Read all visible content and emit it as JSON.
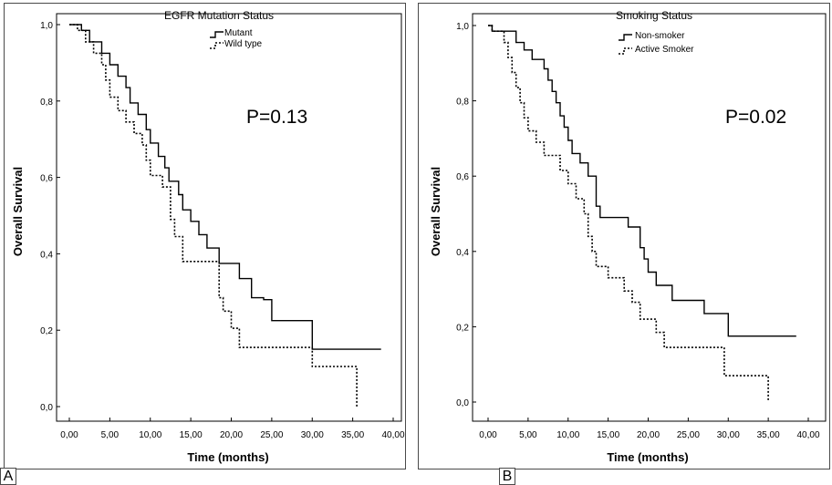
{
  "chart_data": [
    {
      "type": "line",
      "panel_label": "A",
      "xlabel": "Time (months)",
      "ylabel": "Overall Survival",
      "xlim": [
        0,
        40
      ],
      "ylim": [
        0,
        1
      ],
      "x_ticks": [
        "0,00",
        "5,00",
        "10,00",
        "15,00",
        "20,00",
        "25,00",
        "30,00",
        "35,00",
        "40,00"
      ],
      "y_ticks": [
        "0,0",
        "0,2",
        "0,4",
        "0,6",
        "0,8",
        "1,0"
      ],
      "legend_title": "EGFR Mutation Status",
      "annotation": "P=0.13",
      "grid": false,
      "series": [
        {
          "name": "Mutant",
          "style": "solid",
          "step": [
            [
              0,
              1
            ],
            [
              1.5,
              1
            ],
            [
              1.5,
              0.985
            ],
            [
              2.5,
              0.985
            ],
            [
              2.5,
              0.955
            ],
            [
              4,
              0.955
            ],
            [
              4,
              0.925
            ],
            [
              5,
              0.925
            ],
            [
              5,
              0.895
            ],
            [
              6,
              0.895
            ],
            [
              6,
              0.865
            ],
            [
              7,
              0.865
            ],
            [
              7,
              0.835
            ],
            [
              7.5,
              0.835
            ],
            [
              7.5,
              0.795
            ],
            [
              8.5,
              0.795
            ],
            [
              8.5,
              0.765
            ],
            [
              9.5,
              0.765
            ],
            [
              9.5,
              0.725
            ],
            [
              10,
              0.725
            ],
            [
              10,
              0.69
            ],
            [
              11,
              0.69
            ],
            [
              11,
              0.655
            ],
            [
              11.8,
              0.655
            ],
            [
              11.8,
              0.625
            ],
            [
              12.3,
              0.625
            ],
            [
              12.3,
              0.59
            ],
            [
              13.5,
              0.59
            ],
            [
              13.5,
              0.555
            ],
            [
              14,
              0.555
            ],
            [
              14,
              0.515
            ],
            [
              15,
              0.515
            ],
            [
              15,
              0.485
            ],
            [
              16,
              0.485
            ],
            [
              16,
              0.45
            ],
            [
              17,
              0.45
            ],
            [
              17,
              0.415
            ],
            [
              18.5,
              0.415
            ],
            [
              18.5,
              0.375
            ],
            [
              21,
              0.375
            ],
            [
              21,
              0.335
            ],
            [
              22.5,
              0.335
            ],
            [
              22.5,
              0.285
            ],
            [
              24,
              0.285
            ],
            [
              24,
              0.28
            ],
            [
              25,
              0.28
            ],
            [
              25,
              0.225
            ],
            [
              27,
              0.225
            ],
            [
              27,
              0.225
            ],
            [
              30,
              0.225
            ],
            [
              30,
              0.15
            ],
            [
              38.5,
              0.15
            ]
          ]
        },
        {
          "name": "Wild type",
          "style": "dotted",
          "step": [
            [
              0,
              1
            ],
            [
              1,
              1
            ],
            [
              1,
              0.985
            ],
            [
              2,
              0.985
            ],
            [
              2,
              0.955
            ],
            [
              3,
              0.955
            ],
            [
              3,
              0.925
            ],
            [
              4,
              0.925
            ],
            [
              4,
              0.895
            ],
            [
              4.5,
              0.895
            ],
            [
              4.5,
              0.855
            ],
            [
              5,
              0.855
            ],
            [
              5,
              0.81
            ],
            [
              6,
              0.81
            ],
            [
              6,
              0.775
            ],
            [
              7,
              0.775
            ],
            [
              7,
              0.745
            ],
            [
              8,
              0.745
            ],
            [
              8,
              0.715
            ],
            [
              9,
              0.715
            ],
            [
              9,
              0.685
            ],
            [
              9.5,
              0.685
            ],
            [
              9.5,
              0.645
            ],
            [
              10,
              0.645
            ],
            [
              10,
              0.605
            ],
            [
              11.5,
              0.605
            ],
            [
              11.5,
              0.575
            ],
            [
              12.5,
              0.575
            ],
            [
              12.5,
              0.49
            ],
            [
              13,
              0.49
            ],
            [
              13,
              0.445
            ],
            [
              14,
              0.445
            ],
            [
              14,
              0.38
            ],
            [
              18.5,
              0.38
            ],
            [
              18.5,
              0.285
            ],
            [
              19,
              0.285
            ],
            [
              19,
              0.25
            ],
            [
              20,
              0.25
            ],
            [
              20,
              0.205
            ],
            [
              21,
              0.205
            ],
            [
              21,
              0.155
            ],
            [
              30,
              0.155
            ],
            [
              30,
              0.105
            ],
            [
              33,
              0.105
            ],
            [
              33,
              0.105
            ],
            [
              35.5,
              0.105
            ],
            [
              35.5,
              0
            ]
          ]
        }
      ]
    },
    {
      "type": "line",
      "panel_label": "B",
      "xlabel": "Time (months)",
      "ylabel": "Overall Survival",
      "xlim": [
        0,
        40
      ],
      "ylim": [
        0,
        1
      ],
      "x_ticks": [
        "0,00",
        "5,00",
        "10,00",
        "15,00",
        "20,00",
        "25,00",
        "30,00",
        "35,00",
        "40,00"
      ],
      "y_ticks": [
        "0,0",
        "0,2",
        "0,4",
        "0,6",
        "0,8",
        "1,0"
      ],
      "legend_title": "Smoking Status",
      "annotation": "P=0.02",
      "grid": false,
      "series": [
        {
          "name": "Non-smoker",
          "style": "solid",
          "step": [
            [
              0,
              1
            ],
            [
              0.5,
              1
            ],
            [
              0.5,
              0.985
            ],
            [
              3.5,
              0.985
            ],
            [
              3.5,
              0.955
            ],
            [
              4.5,
              0.955
            ],
            [
              4.5,
              0.935
            ],
            [
              5.5,
              0.935
            ],
            [
              5.5,
              0.91
            ],
            [
              7,
              0.91
            ],
            [
              7,
              0.885
            ],
            [
              7.5,
              0.885
            ],
            [
              7.5,
              0.855
            ],
            [
              8,
              0.855
            ],
            [
              8,
              0.825
            ],
            [
              8.5,
              0.825
            ],
            [
              8.5,
              0.795
            ],
            [
              9,
              0.795
            ],
            [
              9,
              0.76
            ],
            [
              9.5,
              0.76
            ],
            [
              9.5,
              0.73
            ],
            [
              10,
              0.73
            ],
            [
              10,
              0.695
            ],
            [
              10.5,
              0.695
            ],
            [
              10.5,
              0.66
            ],
            [
              11.5,
              0.66
            ],
            [
              11.5,
              0.635
            ],
            [
              12.5,
              0.635
            ],
            [
              12.5,
              0.6
            ],
            [
              13.5,
              0.6
            ],
            [
              13.5,
              0.52
            ],
            [
              14,
              0.52
            ],
            [
              14,
              0.49
            ],
            [
              17.5,
              0.49
            ],
            [
              17.5,
              0.465
            ],
            [
              19,
              0.465
            ],
            [
              19,
              0.41
            ],
            [
              19.5,
              0.41
            ],
            [
              19.5,
              0.38
            ],
            [
              20,
              0.38
            ],
            [
              20,
              0.345
            ],
            [
              21,
              0.345
            ],
            [
              21,
              0.31
            ],
            [
              23,
              0.31
            ],
            [
              23,
              0.27
            ],
            [
              27,
              0.27
            ],
            [
              27,
              0.235
            ],
            [
              30,
              0.235
            ],
            [
              30,
              0.175
            ],
            [
              38.5,
              0.175
            ]
          ]
        },
        {
          "name": "Active Smoker",
          "style": "dotted",
          "step": [
            [
              0,
              1
            ],
            [
              0.5,
              1
            ],
            [
              0.5,
              0.985
            ],
            [
              2,
              0.985
            ],
            [
              2,
              0.955
            ],
            [
              2.5,
              0.955
            ],
            [
              2.5,
              0.915
            ],
            [
              3,
              0.915
            ],
            [
              3,
              0.875
            ],
            [
              3.5,
              0.875
            ],
            [
              3.5,
              0.835
            ],
            [
              4,
              0.835
            ],
            [
              4,
              0.795
            ],
            [
              4.5,
              0.795
            ],
            [
              4.5,
              0.755
            ],
            [
              5,
              0.755
            ],
            [
              5,
              0.72
            ],
            [
              6,
              0.72
            ],
            [
              6,
              0.69
            ],
            [
              7,
              0.69
            ],
            [
              7,
              0.655
            ],
            [
              9,
              0.655
            ],
            [
              9,
              0.615
            ],
            [
              10,
              0.615
            ],
            [
              10,
              0.58
            ],
            [
              11,
              0.58
            ],
            [
              11,
              0.54
            ],
            [
              12,
              0.54
            ],
            [
              12,
              0.5
            ],
            [
              12.5,
              0.5
            ],
            [
              12.5,
              0.44
            ],
            [
              13,
              0.44
            ],
            [
              13,
              0.4
            ],
            [
              13.5,
              0.4
            ],
            [
              13.5,
              0.36
            ],
            [
              15,
              0.36
            ],
            [
              15,
              0.33
            ],
            [
              17,
              0.33
            ],
            [
              17,
              0.295
            ],
            [
              18,
              0.295
            ],
            [
              18,
              0.265
            ],
            [
              19,
              0.265
            ],
            [
              19,
              0.22
            ],
            [
              21,
              0.22
            ],
            [
              21,
              0.185
            ],
            [
              22,
              0.185
            ],
            [
              22,
              0.145
            ],
            [
              29.5,
              0.145
            ],
            [
              29.5,
              0.07
            ],
            [
              35,
              0.07
            ],
            [
              35,
              0.005
            ]
          ]
        }
      ]
    }
  ]
}
